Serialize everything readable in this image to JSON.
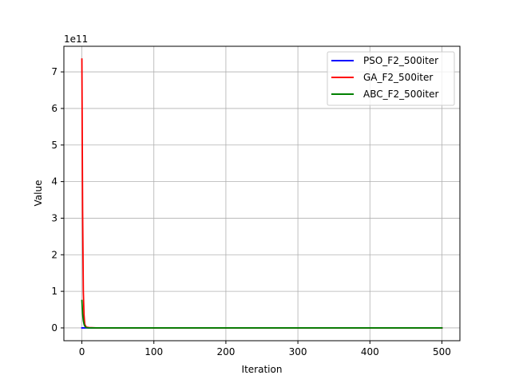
{
  "chart_data": {
    "type": "line",
    "title": "",
    "xlabel": "Iteration",
    "ylabel": "Value",
    "y_offset_text": "1e11",
    "x_ticks": [
      0,
      100,
      200,
      300,
      400,
      500
    ],
    "y_ticks": [
      0,
      1,
      2,
      3,
      4,
      5,
      6,
      7
    ],
    "xlim": [
      -25,
      525
    ],
    "ylim": [
      -0.35,
      7.7
    ],
    "y_unit_multiplier": 100000000000.0,
    "grid": true,
    "legend_position": "top-right",
    "series": [
      {
        "name": "PSO_F2_500iter",
        "color": "#0000ff",
        "x": [
          0,
          1,
          2,
          3,
          5,
          10,
          20,
          50,
          100,
          200,
          300,
          400,
          500
        ],
        "y": [
          0.0,
          0.0,
          0.0,
          0.0,
          0.0,
          0.0,
          0.0,
          0.0,
          0.0,
          0.0,
          0.0,
          0.0,
          0.0
        ]
      },
      {
        "name": "GA_F2_500iter",
        "color": "#ff0000",
        "x": [
          0,
          1,
          2,
          3,
          4,
          6,
          10,
          20,
          50,
          100,
          200,
          300,
          400,
          500
        ],
        "y": [
          7.35,
          3.2,
          1.0,
          0.35,
          0.1,
          0.02,
          0.01,
          0.0,
          0.0,
          0.0,
          0.0,
          0.0,
          0.0,
          0.0
        ]
      },
      {
        "name": "ABC_F2_500iter",
        "color": "#008000",
        "x": [
          0,
          1,
          2,
          3,
          4,
          6,
          10,
          20,
          50,
          100,
          200,
          300,
          400,
          500
        ],
        "y": [
          0.75,
          0.38,
          0.2,
          0.1,
          0.05,
          0.01,
          0.0,
          0.0,
          0.0,
          0.0,
          0.0,
          0.0,
          0.0,
          0.0
        ]
      }
    ]
  }
}
